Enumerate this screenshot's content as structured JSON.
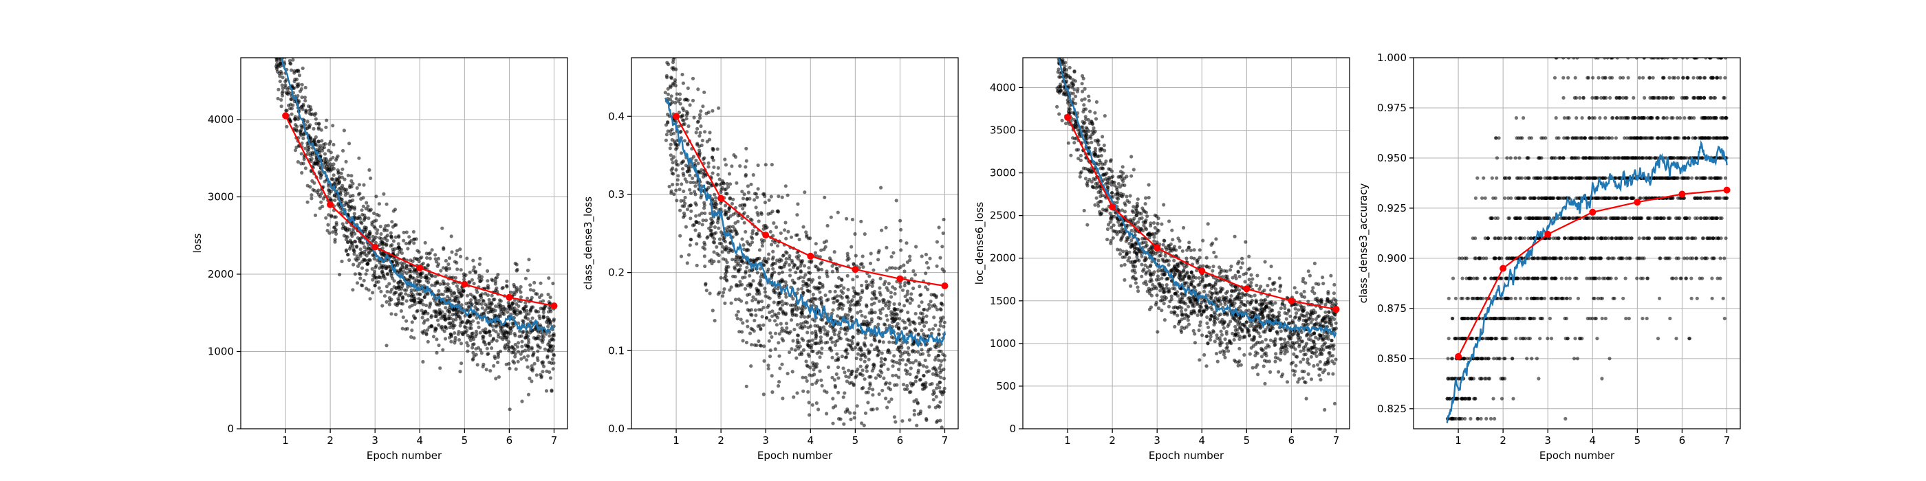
{
  "chart_data": [
    {
      "type": "scatter",
      "xlabel": "Epoch number",
      "ylabel": "loss",
      "xlim": [
        0.0,
        7.3
      ],
      "ylim": [
        0,
        4800
      ],
      "xticks": [
        1,
        2,
        3,
        4,
        5,
        6,
        7
      ],
      "yticks": [
        0,
        1000,
        2000,
        3000,
        4000
      ],
      "ytick_labels": [
        "0",
        "1000",
        "2000",
        "3000",
        "4000"
      ],
      "grid": true,
      "epoch_avg_color": "#ff0000",
      "running_avg_color": "#1f77b4",
      "point_color": "#000000",
      "series": [
        {
          "kind": "batch points",
          "spread": 320,
          "trend": {
            "a": 1150,
            "b": 4000,
            "k": 0.55,
            "x0": 0.75
          }
        },
        {
          "kind": "running average",
          "trend": {
            "a": 1150,
            "b": 4000,
            "k": 0.55,
            "x0": 0.75
          }
        },
        {
          "kind": "epoch average",
          "x": [
            1,
            2,
            3,
            4,
            5,
            6,
            7
          ],
          "y": [
            4050,
            2900,
            2350,
            2080,
            1870,
            1700,
            1590
          ]
        }
      ]
    },
    {
      "type": "scatter",
      "xlabel": "Epoch number",
      "ylabel": "class_dense3_loss",
      "xlim": [
        0.0,
        7.3
      ],
      "ylim": [
        0,
        0.475
      ],
      "xticks": [
        1,
        2,
        3,
        4,
        5,
        6,
        7
      ],
      "yticks": [
        0,
        0.1,
        0.2,
        0.3,
        0.4
      ],
      "ytick_labels": [
        "0.0",
        "0.1",
        "0.2",
        "0.3",
        "0.4"
      ],
      "grid": true,
      "epoch_avg_color": "#ff0000",
      "running_avg_color": "#1f77b4",
      "point_color": "#000000",
      "series": [
        {
          "kind": "batch points",
          "spread": 0.055,
          "trend": {
            "a": 0.1,
            "b": 0.3,
            "k": 0.55,
            "x0": 0.9
          }
        },
        {
          "kind": "running average",
          "trend": {
            "a": 0.1,
            "b": 0.3,
            "k": 0.55,
            "x0": 0.9
          }
        },
        {
          "kind": "epoch average",
          "x": [
            1,
            2,
            3,
            4,
            5,
            6,
            7
          ],
          "y": [
            0.4,
            0.295,
            0.248,
            0.221,
            0.204,
            0.192,
            0.183
          ]
        }
      ]
    },
    {
      "type": "scatter",
      "xlabel": "Epoch number",
      "ylabel": "loc_dense6_loss",
      "xlim": [
        0.0,
        7.3
      ],
      "ylim": [
        0,
        4350
      ],
      "xticks": [
        1,
        2,
        3,
        4,
        5,
        6,
        7
      ],
      "yticks": [
        0,
        500,
        1000,
        1500,
        2000,
        2500,
        3000,
        3500,
        4000
      ],
      "ytick_labels": [
        "0",
        "500",
        "1000",
        "1500",
        "2000",
        "2500",
        "3000",
        "3500",
        "4000"
      ],
      "grid": true,
      "epoch_avg_color": "#ff0000",
      "running_avg_color": "#1f77b4",
      "point_color": "#000000",
      "series": [
        {
          "kind": "batch points",
          "spread": 290,
          "trend": {
            "a": 1050,
            "b": 3300,
            "k": 0.6,
            "x0": 0.8
          }
        },
        {
          "kind": "running average",
          "trend": {
            "a": 1050,
            "b": 3300,
            "k": 0.6,
            "x0": 0.8
          }
        },
        {
          "kind": "epoch average",
          "x": [
            1,
            2,
            3,
            4,
            5,
            6,
            7
          ],
          "y": [
            3650,
            2600,
            2120,
            1850,
            1640,
            1500,
            1400
          ]
        }
      ]
    },
    {
      "type": "scatter",
      "xlabel": "Epoch number",
      "ylabel": "class_dense3_accuracy",
      "xlim": [
        0.0,
        7.3
      ],
      "ylim": [
        0.815,
        1.0
      ],
      "xticks": [
        1,
        2,
        3,
        4,
        5,
        6,
        7
      ],
      "yticks": [
        0.825,
        0.85,
        0.875,
        0.9,
        0.925,
        0.95,
        0.975,
        1.0
      ],
      "ytick_labels": [
        "0.825",
        "0.850",
        "0.875",
        "0.900",
        "0.925",
        "0.950",
        "0.975",
        "1.000"
      ],
      "grid": true,
      "epoch_avg_color": "#ff0000",
      "running_avg_color": "#1f77b4",
      "point_color": "#000000",
      "series": [
        {
          "kind": "batch points",
          "spread": 0.03,
          "trend": {
            "a": 0.955,
            "b": -0.125,
            "k": 0.55,
            "x0": 0.9
          },
          "quantum": 0.01,
          "max": 1.0
        },
        {
          "kind": "running average",
          "trend": {
            "a": 0.955,
            "b": -0.125,
            "k": 0.55,
            "x0": 0.9
          }
        },
        {
          "kind": "epoch average",
          "x": [
            1,
            2,
            3,
            4,
            5,
            6,
            7
          ],
          "y": [
            0.851,
            0.895,
            0.912,
            0.923,
            0.928,
            0.932,
            0.934
          ]
        }
      ]
    }
  ]
}
